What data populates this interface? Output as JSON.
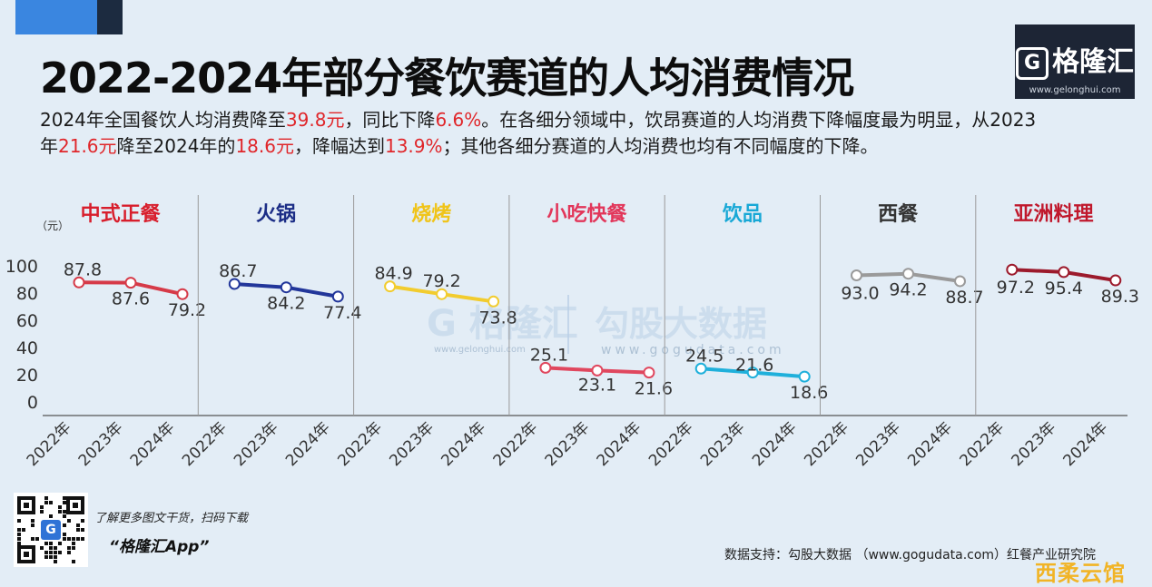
{
  "title": "2022-2024年部分餐饮赛道的人均消费情况",
  "logo": {
    "name": "格隆汇",
    "url": "www.gelonghui.com"
  },
  "summary": {
    "p1": "2024年全国餐饮人均消费降至",
    "v1": "39.8元",
    "p2": "，同比下降",
    "v2": "6.6%",
    "p3": "。在各细分领域中，饮昂赛道的人均消费下降幅度最为明显，从2023年",
    "v3": "21.6元",
    "p4": "降至2024年的",
    "v4": "18.6元",
    "p5": "，降幅达到",
    "v5": "13.9%",
    "p6": "；其他各细分赛道的人均消费也均有不同幅度的下降。"
  },
  "chart_data": {
    "type": "line",
    "unit_label": "（元）",
    "y_ticks": [
      0,
      20,
      40,
      60,
      80,
      100
    ],
    "ylim": [
      0,
      100
    ],
    "x_labels": [
      "2022年",
      "2023年",
      "2024年"
    ],
    "series": [
      {
        "name": "中式正餐",
        "color": "#d81e2c",
        "line_color": "#d63a48",
        "values": [
          87.8,
          87.6,
          79.2
        ]
      },
      {
        "name": "火锅",
        "color": "#1b2d86",
        "line_color": "#22369a",
        "values": [
          86.7,
          84.2,
          77.4
        ]
      },
      {
        "name": "烧烤",
        "color": "#f0c419",
        "line_color": "#f2cc2e",
        "values": [
          84.9,
          79.2,
          73.8
        ]
      },
      {
        "name": "小吃快餐",
        "color": "#e2365a",
        "line_color": "#e0475e",
        "values": [
          25.1,
          23.1,
          21.6
        ]
      },
      {
        "name": "饮品",
        "color": "#18a8d6",
        "line_color": "#1fb0db",
        "values": [
          24.5,
          21.6,
          18.6
        ]
      },
      {
        "name": "西餐",
        "color": "#333333",
        "line_color": "#9a9a9a",
        "values": [
          93.0,
          94.2,
          88.7
        ]
      },
      {
        "name": "亚洲料理",
        "color": "#c0182c",
        "line_color": "#9c1a2c",
        "values": [
          97.2,
          95.4,
          89.3
        ]
      }
    ]
  },
  "watermark": {
    "brand": "格隆汇",
    "brand_url": "www.gelonghui.com",
    "data_brand": "勾股大数据",
    "data_url": "www.gogudata.com"
  },
  "footer": {
    "promo": "了解更多图文干货，扫码下载",
    "app_name": "“格隆汇App”",
    "qr_logo": "G",
    "source": "数据支持：勾股大数据 （www.gogudata.com）红餐产业研究院",
    "corner_watermark": "西柔云馆"
  }
}
